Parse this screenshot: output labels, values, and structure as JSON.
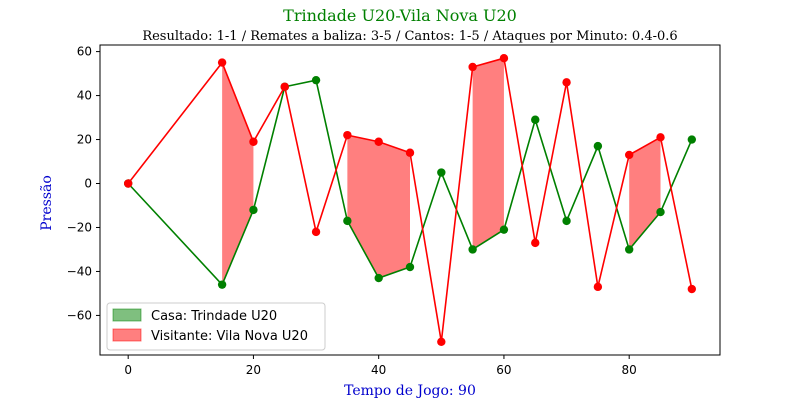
{
  "chart_data": {
    "type": "line",
    "title": "Trindade U20-Vila Nova U20",
    "subtitle": "Resultado: 1-1 / Remates a baliza: 3-5 / Cantos: 1-5 / Ataques por Minuto: 0.4-0.6",
    "xlabel": "Tempo de Jogo: 90",
    "ylabel": "Pressão",
    "xlim": [
      -4.5,
      94.5
    ],
    "ylim": [
      -78,
      63
    ],
    "x_ticks": [
      0,
      20,
      40,
      60,
      80
    ],
    "y_ticks": [
      -60,
      -40,
      -20,
      0,
      20,
      40,
      60
    ],
    "x": [
      0,
      15,
      20,
      25,
      30,
      35,
      40,
      45,
      50,
      55,
      60,
      65,
      70,
      75,
      80,
      85,
      90
    ],
    "grid": false,
    "legend_position": "lower-left",
    "series": [
      {
        "name": "Casa: Trindade U20",
        "line_color": "#008000",
        "fill_color": "#008000",
        "values": [
          0,
          -46,
          -12,
          44,
          47,
          -17,
          -43,
          -38,
          5,
          -30,
          -21,
          29,
          -17,
          17,
          -30,
          -13,
          20
        ]
      },
      {
        "name": "Visitante: Vila Nova U20",
        "line_color": "#ff0000",
        "fill_color": "#ff0000",
        "values": [
          0,
          55,
          19,
          44,
          -22,
          22,
          19,
          14,
          -72,
          53,
          57,
          -27,
          46,
          -47,
          13,
          21,
          -48
        ]
      }
    ],
    "colors": {
      "title": "#008000",
      "subtitle": "#000000",
      "axis_label": "#0000cd"
    }
  }
}
